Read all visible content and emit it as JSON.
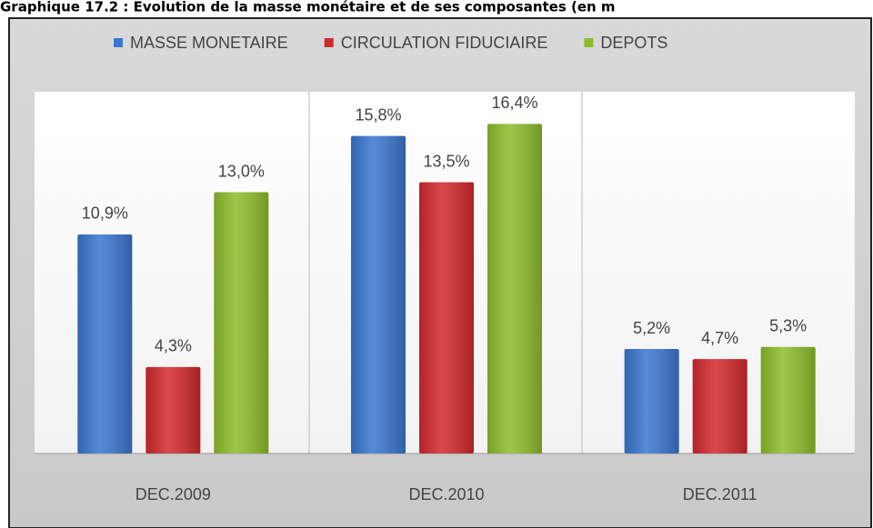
{
  "chart_data": {
    "type": "bar",
    "title": "Graphique 17.2 : Evolution de la masse monétaire et de ses composantes (en m",
    "categories": [
      "DEC.2009",
      "DEC.2010",
      "DEC.2011"
    ],
    "series": [
      {
        "name": "MASSE MONETAIRE",
        "color": "#3a76d0",
        "values": [
          10.9,
          15.8,
          5.2
        ],
        "value_labels": [
          "10,9%",
          "15,8%",
          "5,2%"
        ]
      },
      {
        "name": "CIRCULATION FIDUCIAIRE",
        "color": "#d2292d",
        "values": [
          4.3,
          13.5,
          4.7
        ],
        "value_labels": [
          "4,3%",
          "13,5%",
          "4,7%"
        ]
      },
      {
        "name": "DEPOTS",
        "color": "#8dbd2b",
        "values": [
          13.0,
          16.4,
          5.3
        ],
        "value_labels": [
          "13,0%",
          "16,4%",
          "5,3%"
        ]
      }
    ],
    "ylim": [
      0,
      18
    ],
    "legend": "top"
  }
}
